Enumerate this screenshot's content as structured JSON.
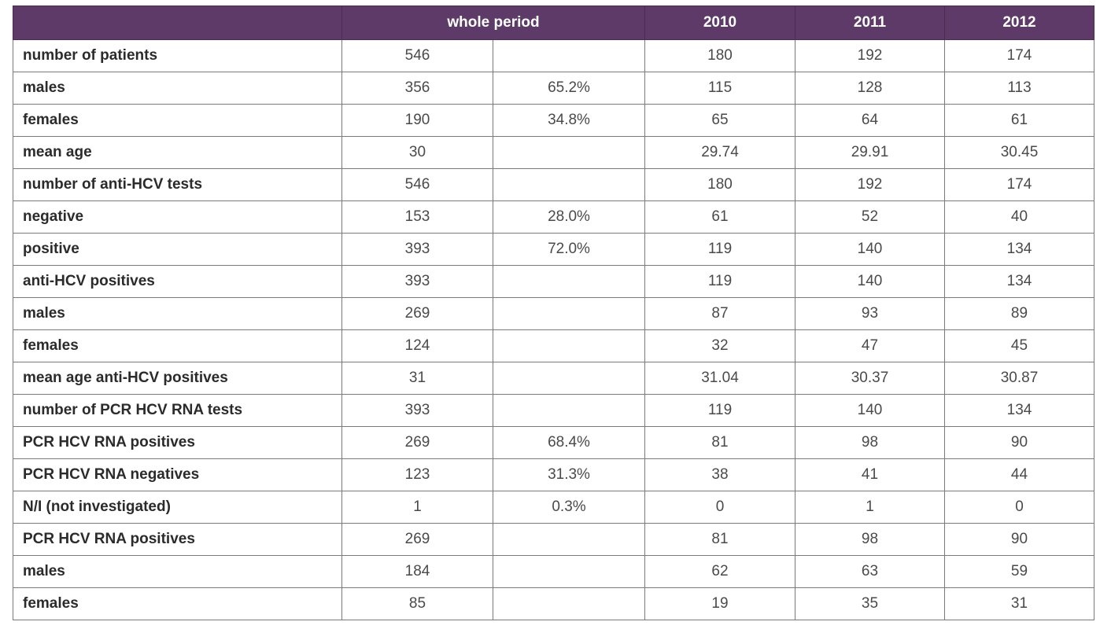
{
  "header": {
    "label": "",
    "whole_period": "whole period",
    "y2010": "2010",
    "y2011": "2011",
    "y2012": "2012"
  },
  "rows": [
    {
      "label": "number of patients",
      "whole": "546",
      "pct": "",
      "y2010": "180",
      "y2011": "192",
      "y2012": "174"
    },
    {
      "label": "males",
      "whole": "356",
      "pct": "65.2%",
      "y2010": "115",
      "y2011": "128",
      "y2012": "113"
    },
    {
      "label": "females",
      "whole": "190",
      "pct": "34.8%",
      "y2010": "65",
      "y2011": "64",
      "y2012": "61"
    },
    {
      "label": "mean  age",
      "whole": "30",
      "pct": "",
      "y2010": "29.74",
      "y2011": "29.91",
      "y2012": "30.45"
    },
    {
      "label": "number of anti-HCV tests",
      "whole": "546",
      "pct": "",
      "y2010": "180",
      "y2011": "192",
      "y2012": "174"
    },
    {
      "label": "negative",
      "whole": "153",
      "pct": "28.0%",
      "y2010": "61",
      "y2011": "52",
      "y2012": "40"
    },
    {
      "label": "positive",
      "whole": "393",
      "pct": "72.0%",
      "y2010": "119",
      "y2011": "140",
      "y2012": "134"
    },
    {
      "label": "anti-HCV positives",
      "whole": "393",
      "pct": "",
      "y2010": "119",
      "y2011": "140",
      "y2012": "134"
    },
    {
      "label": "males",
      "whole": "269",
      "pct": "",
      "y2010": "87",
      "y2011": "93",
      "y2012": "89"
    },
    {
      "label": "females",
      "whole": "124",
      "pct": "",
      "y2010": "32",
      "y2011": "47",
      "y2012": "45"
    },
    {
      "label": "mean age anti-HCV positives",
      "whole": "31",
      "pct": "",
      "y2010": "31.04",
      "y2011": "30.37",
      "y2012": "30.87"
    },
    {
      "label": "number of PCR HCV RNA tests",
      "whole": "393",
      "pct": "",
      "y2010": "119",
      "y2011": "140",
      "y2012": "134"
    },
    {
      "label": "PCR HCV RNA positives",
      "whole": "269",
      "pct": "68.4%",
      "y2010": "81",
      "y2011": "98",
      "y2012": "90"
    },
    {
      "label": "PCR HCV RNA negatives",
      "whole": "123",
      "pct": "31.3%",
      "y2010": "38",
      "y2011": "41",
      "y2012": "44"
    },
    {
      "label": "N/I (not investigated)",
      "whole": "1",
      "pct": "0.3%",
      "y2010": "0",
      "y2011": "1",
      "y2012": "0"
    },
    {
      "label": "PCR HCV RNA positives",
      "whole": "269",
      "pct": "",
      "y2010": "81",
      "y2011": "98",
      "y2012": "90"
    },
    {
      "label": "males",
      "whole": "184",
      "pct": "",
      "y2010": "62",
      "y2011": "63",
      "y2012": "59"
    },
    {
      "label": "females",
      "whole": "85",
      "pct": "",
      "y2010": "19",
      "y2011": "35",
      "y2012": "31"
    }
  ],
  "colors": {
    "header_bg": "#5e3a68",
    "header_text": "#ffffff",
    "border": "#7a7a7a"
  }
}
